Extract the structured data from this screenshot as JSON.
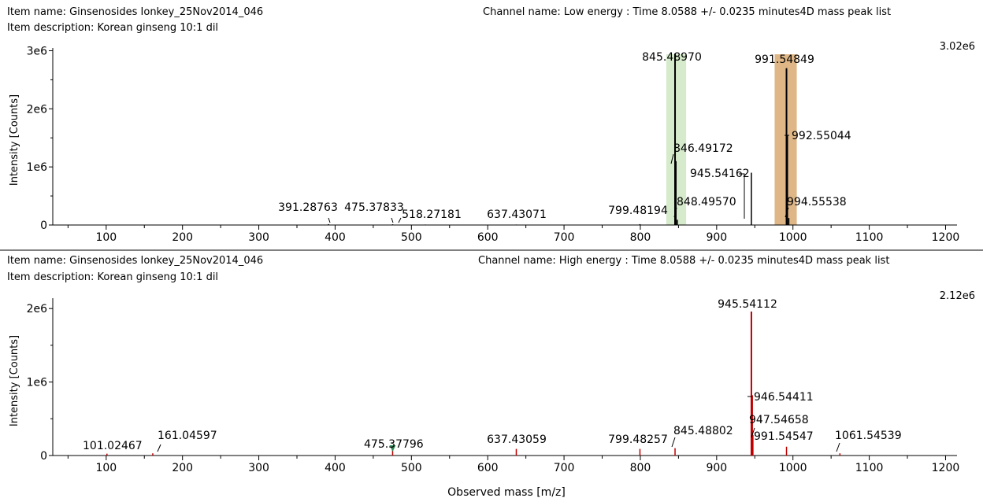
{
  "chart_data": [
    {
      "type": "bar",
      "panel": "low",
      "item_name": "Item name: Ginsenosides Ionkey_25Nov2014_046",
      "item_description": "Item description: Korean ginseng 10:1 dil",
      "channel_name": "Channel name: Low energy : Time 8.0588 +/- 0.0235 minutes4D mass peak list",
      "max_intensity_label": "3.02e6",
      "ylabel": "Intensity [Counts]",
      "xlabel": "",
      "xlim": [
        30,
        1215
      ],
      "ylim": [
        0,
        3020000
      ],
      "x_ticks": [
        100,
        200,
        300,
        400,
        500,
        600,
        700,
        800,
        900,
        1000,
        1100,
        1200
      ],
      "y_ticks": [
        {
          "value": 0,
          "label": "0"
        },
        {
          "value": 1000000,
          "label": "1e6"
        },
        {
          "value": 2000000,
          "label": "2e6"
        },
        {
          "value": 3000000,
          "label": "3e6"
        }
      ],
      "bar_color": "#000000",
      "highlights": [
        {
          "from": 834,
          "to": 860,
          "color": "#cfe7c2"
        },
        {
          "from": 976,
          "to": 1005,
          "color": "#d9aa72"
        }
      ],
      "peaks": [
        {
          "x": 391.28763,
          "y": 15000,
          "label": "391.28763"
        },
        {
          "x": 475.37833,
          "y": 12000,
          "label": "475.37833"
        },
        {
          "x": 518.27181,
          "y": 8000,
          "label": "518.27181"
        },
        {
          "x": 637.43071,
          "y": 8000,
          "label": "637.43071"
        },
        {
          "x": 799.48194,
          "y": 15000,
          "label": "799.48194"
        },
        {
          "x": 845.4897,
          "y": 2950000,
          "label": "845.48970"
        },
        {
          "x": 846.49172,
          "y": 1100000,
          "label": "846.49172"
        },
        {
          "x": 848.4957,
          "y": 90000,
          "label": "848.49570"
        },
        {
          "x": 945.54162,
          "y": 900000,
          "label": "945.54162"
        },
        {
          "x": 991.54849,
          "y": 2700000,
          "label": "991.54849"
        },
        {
          "x": 992.55044,
          "y": 1550000,
          "label": "992.55044"
        },
        {
          "x": 994.55538,
          "y": 120000,
          "label": "994.55538"
        }
      ]
    },
    {
      "type": "bar",
      "panel": "high",
      "item_name": "Item name: Ginsenosides Ionkey_25Nov2014_046",
      "item_description": "Item description: Korean ginseng 10:1 dil",
      "channel_name": "Channel name: High energy : Time 8.0588 +/- 0.0235 minutes4D mass peak list",
      "max_intensity_label": "2.12e6",
      "ylabel": "Intensity [Counts]",
      "xlabel": "Observed mass [m/z]",
      "xlim": [
        30,
        1215
      ],
      "ylim": [
        0,
        2120000
      ],
      "x_ticks": [
        100,
        200,
        300,
        400,
        500,
        600,
        700,
        800,
        900,
        1000,
        1100,
        1200
      ],
      "y_ticks": [
        {
          "value": 0,
          "label": "0"
        },
        {
          "value": 1000000,
          "label": "1e6"
        },
        {
          "value": 2000000,
          "label": "2e6"
        }
      ],
      "bar_color": "#c00000",
      "peaks": [
        {
          "x": 101.02467,
          "y": 25000,
          "label": "101.02467"
        },
        {
          "x": 161.04597,
          "y": 30000,
          "label": "161.04597"
        },
        {
          "x": 475.37796,
          "y": 90000,
          "label": "475.37796",
          "marker_color": "#2e8b57"
        },
        {
          "x": 637.43059,
          "y": 90000,
          "label": "637.43059"
        },
        {
          "x": 799.48257,
          "y": 90000,
          "label": "799.48257"
        },
        {
          "x": 845.48802,
          "y": 100000,
          "label": "845.48802"
        },
        {
          "x": 945.54112,
          "y": 1960000,
          "label": "945.54112"
        },
        {
          "x": 946.54411,
          "y": 820000,
          "label": "946.54411"
        },
        {
          "x": 947.54658,
          "y": 280000,
          "label": "947.54658"
        },
        {
          "x": 991.54547,
          "y": 120000,
          "label": "991.54547"
        },
        {
          "x": 1061.54539,
          "y": 30000,
          "label": "1061.54539"
        }
      ]
    }
  ]
}
